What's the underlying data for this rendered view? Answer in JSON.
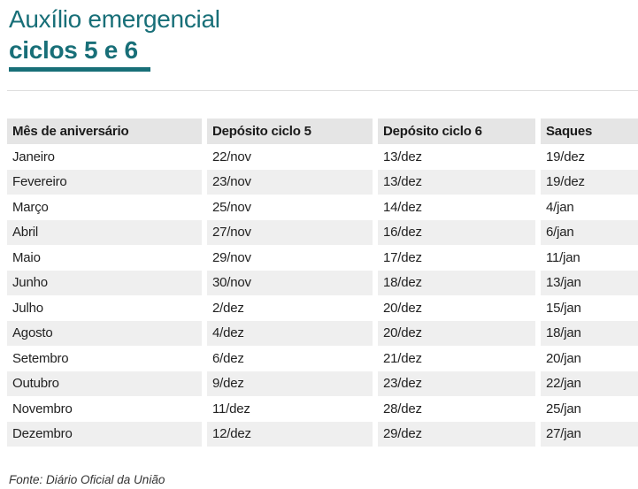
{
  "chart_data": {
    "type": "table",
    "title_line1": "Auxílio emergencial",
    "title_line2": "ciclos 5 e 6",
    "columns": [
      "Mês de aniversário",
      "Depósito ciclo 5",
      "Depósito ciclo 6",
      "Saques"
    ],
    "rows": [
      [
        "Janeiro",
        "22/nov",
        "13/dez",
        "19/dez"
      ],
      [
        "Fevereiro",
        "23/nov",
        "13/dez",
        "19/dez"
      ],
      [
        "Março",
        "25/nov",
        "14/dez",
        "4/jan"
      ],
      [
        "Abril",
        "27/nov",
        "16/dez",
        "6/jan"
      ],
      [
        "Maio",
        "29/nov",
        "17/dez",
        "11/jan"
      ],
      [
        "Junho",
        "30/nov",
        "18/dez",
        "13/jan"
      ],
      [
        "Julho",
        "2/dez",
        "20/dez",
        "15/jan"
      ],
      [
        "Agosto",
        "4/dez",
        "20/dez",
        "18/jan"
      ],
      [
        "Setembro",
        "6/dez",
        "21/dez",
        "20/jan"
      ],
      [
        "Outubro",
        "9/dez",
        "23/dez",
        "22/jan"
      ],
      [
        "Novembro",
        "11/dez",
        "28/dez",
        "25/jan"
      ],
      [
        "Dezembro",
        "12/dez",
        "29/dez",
        "27/jan"
      ]
    ],
    "source": "Fonte: Diário Oficial da União",
    "layout": {
      "striped": true,
      "legend_position": "none",
      "grid": false
    }
  },
  "colors": {
    "accent": "#186f78",
    "header_bg": "#e5e5e5",
    "stripe_bg": "#efefef",
    "divider": "#dddddd"
  }
}
